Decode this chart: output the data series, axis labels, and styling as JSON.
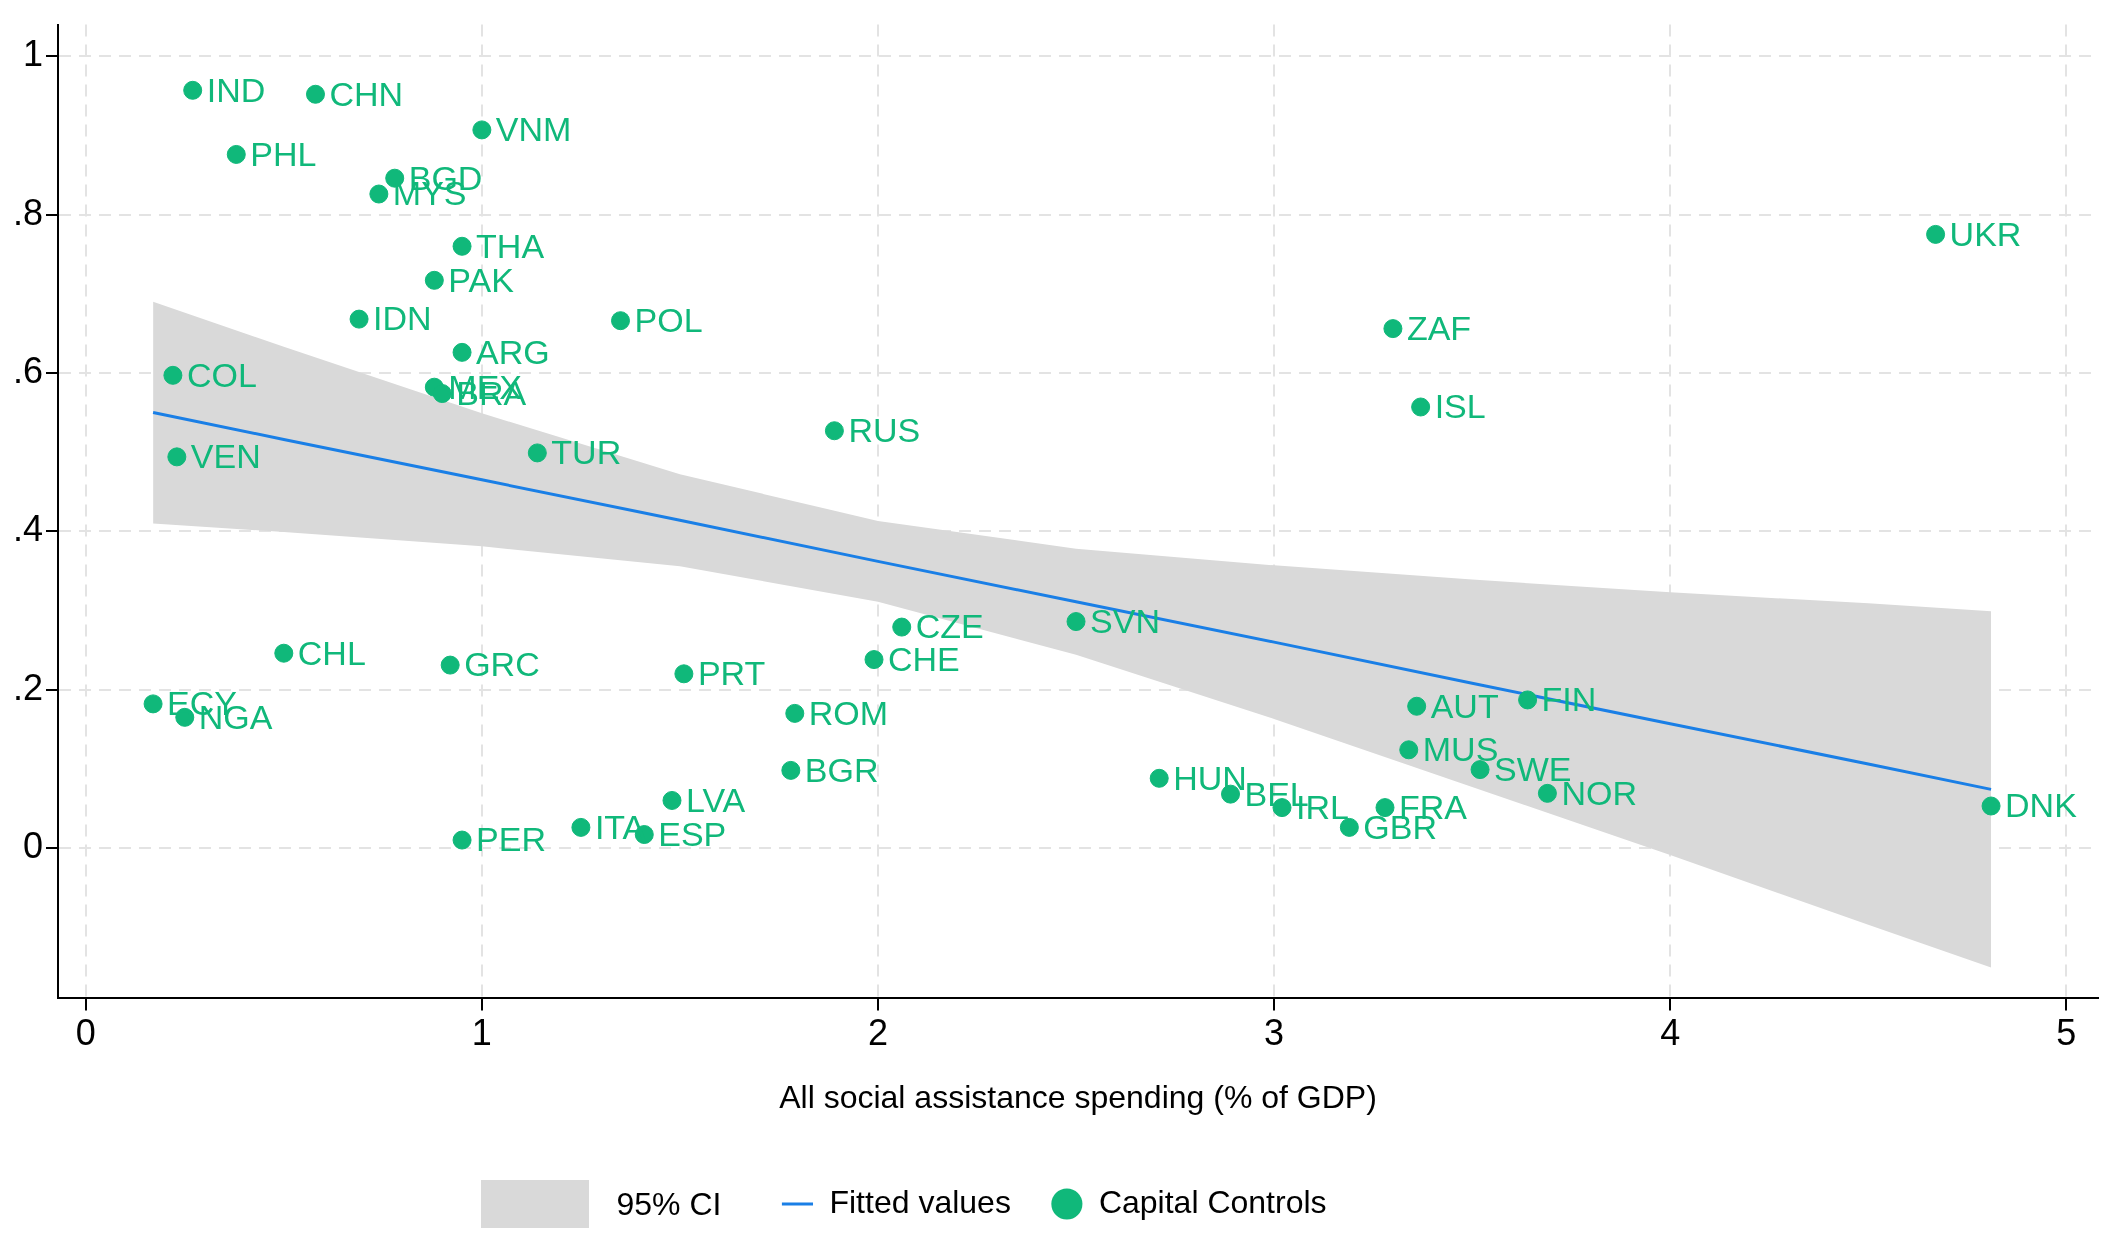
{
  "chart_data": {
    "type": "scatter",
    "xlabel": "All social assistance spending (% of GDP)",
    "xlim": [
      -0.07,
      5.08
    ],
    "xticks": [
      0,
      1,
      2,
      3,
      4,
      5
    ],
    "ylim": [
      -0.19,
      1.04
    ],
    "yticks": [
      {
        "value": 0,
        "label": "0"
      },
      {
        "value": 0.2,
        "label": ".2"
      },
      {
        "value": 0.4,
        "label": ".4"
      },
      {
        "value": 0.6,
        "label": ".6"
      },
      {
        "value": 0.8,
        "label": ".8"
      },
      {
        "value": 1,
        "label": "1"
      }
    ],
    "grid": true,
    "legend": "bottom",
    "annotations": [
      "95% CI"
    ],
    "series": [
      {
        "name": "Fitted values",
        "type": "line",
        "color": "#1a7fe6",
        "marker": "none",
        "line_style": "solid",
        "x": [
          0.17,
          0.5,
          1,
          1.5,
          2,
          2.5,
          3,
          3.5,
          4,
          4.5,
          4.81
        ],
        "values": [
          0.55,
          0.516,
          0.465,
          0.414,
          0.362,
          0.311,
          0.26,
          0.208,
          0.157,
          0.106,
          0.074
        ],
        "lower": [
          0.41,
          0.399,
          0.381,
          0.356,
          0.311,
          0.244,
          0.163,
          0.077,
          -0.009,
          -0.097,
          -0.151
        ],
        "upper": [
          0.69,
          0.633,
          0.549,
          0.472,
          0.413,
          0.378,
          0.357,
          0.339,
          0.323,
          0.309,
          0.299
        ]
      },
      {
        "name": "Capital Controls",
        "color": "#10b87a",
        "marker": "circle",
        "x": [
          0.27,
          0.58,
          0.38,
          0.78,
          0.74,
          1.0,
          0.95,
          0.88,
          0.69,
          1.35,
          0.95,
          0.88,
          0.9,
          0.22,
          0.23,
          1.14,
          1.89,
          3.3,
          3.37,
          4.67,
          2.06,
          2.5,
          1.99,
          0.5,
          0.92,
          1.51,
          0.17,
          0.25,
          1.79,
          1.78,
          1.48,
          1.25,
          1.41,
          0.95,
          2.71,
          2.89,
          3.02,
          3.19,
          3.28,
          3.36,
          3.64,
          3.34,
          3.52,
          3.69,
          4.81
        ],
        "values": [
          0.957,
          0.952,
          0.876,
          0.846,
          0.826,
          0.907,
          0.76,
          0.717,
          0.668,
          0.666,
          0.626,
          0.582,
          0.574,
          0.597,
          0.494,
          0.499,
          0.527,
          0.656,
          0.557,
          0.775,
          0.279,
          0.286,
          0.238,
          0.246,
          0.231,
          0.22,
          0.182,
          0.165,
          0.17,
          0.098,
          0.06,
          0.026,
          0.017,
          0.01,
          0.088,
          0.068,
          0.051,
          0.026,
          0.051,
          0.179,
          0.187,
          0.124,
          0.099,
          0.069,
          0.053
        ],
        "value_labels": [
          "IND",
          "CHN",
          "PHL",
          "BGD",
          "MYS",
          "VNM",
          "THA",
          "PAK",
          "IDN",
          "POL",
          "ARG",
          "MEX",
          "BRA",
          "COL",
          "VEN",
          "TUR",
          "RUS",
          "ZAF",
          "ISL",
          "UKR",
          "CZE",
          "SVN",
          "CHE",
          "CHL",
          "GRC",
          "PRT",
          "ECY",
          "NGA",
          "ROM",
          "BGR",
          "LVA",
          "ITA",
          "ESP",
          "PER",
          "HUN",
          "BEL",
          "IRL",
          "GBR",
          "FRA",
          "AUT",
          "FIN",
          "MUS",
          "SWE",
          "NOR",
          "DNK"
        ]
      }
    ]
  }
}
